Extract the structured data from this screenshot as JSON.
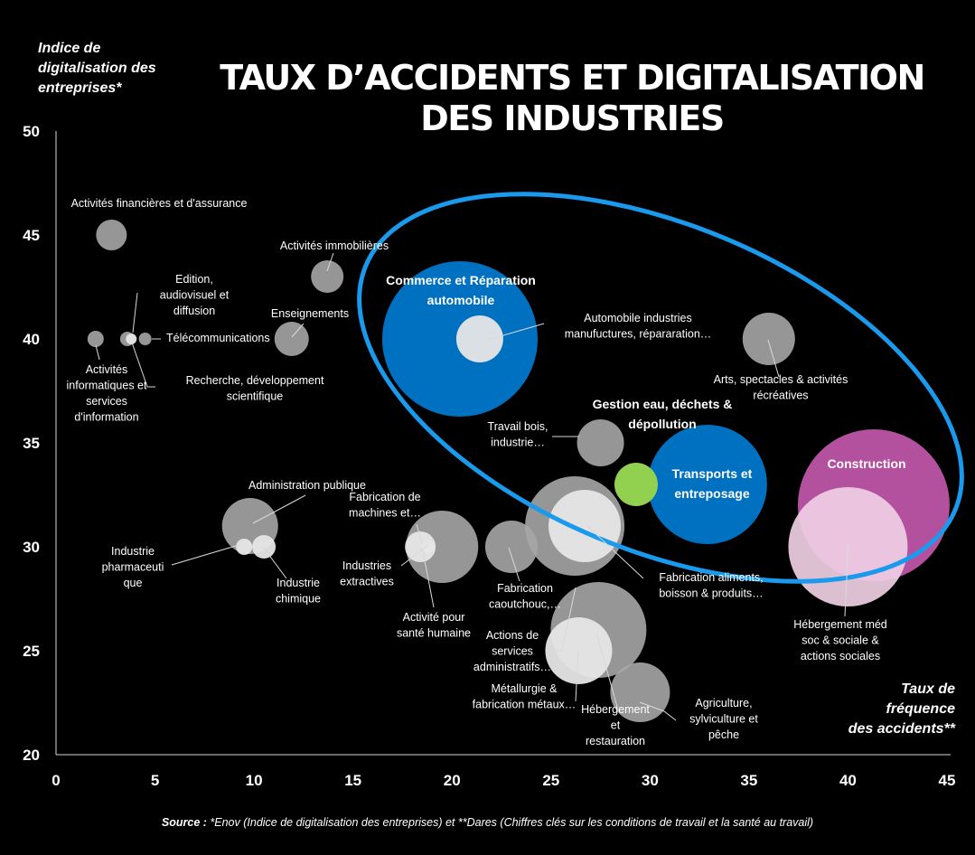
{
  "title": [
    "TAUX D’ACCIDENTS ET DIGITALISATION",
    "DES INDUSTRIES"
  ],
  "source": {
    "prefix": "Source :",
    "text": "*Enov (Indice de digitalisation des entreprises) et **Dares (Chiffres clés sur les conditions de travail et la santé au travail)"
  },
  "chart_data": {
    "type": "scatter",
    "title": "TAUX D’ACCIDENTS ET DIGITALISATION DES INDUSTRIES",
    "ylabel": [
      "Indice de",
      "digitalisation des",
      "entreprises*"
    ],
    "xlabel": [
      "Taux de",
      "fréquence",
      "des accidents**"
    ],
    "xlim": [
      0,
      45
    ],
    "ylim": [
      20,
      50
    ],
    "xticks": [
      0,
      5,
      10,
      15,
      20,
      25,
      30,
      35,
      40,
      45
    ],
    "yticks": [
      20,
      25,
      30,
      35,
      40,
      45,
      50
    ],
    "colors": {
      "grey": "#a6a6a6",
      "light": "#e6e6e6",
      "blue": "#0070c0",
      "green": "#92d050",
      "magenta": "#b3519f",
      "pink": "#f0cfe4",
      "ellipse": "#1a9aed"
    },
    "points": [
      {
        "label": [
          "Activités financières et d'assurance"
        ],
        "x": 2.8,
        "y": 45,
        "r": 17,
        "color": "grey",
        "bold": false
      },
      {
        "label": [
          "Activités immobilières"
        ],
        "x": 13.7,
        "y": 43,
        "r": 18,
        "color": "grey",
        "bold": false
      },
      {
        "label": [
          "Edition,",
          "audiovisuel et",
          "diffusion"
        ],
        "x": 3.6,
        "y": 40,
        "r": 8,
        "color": "grey",
        "bold": false
      },
      {
        "label": [
          "Télécommunications"
        ],
        "x": 4.5,
        "y": 40,
        "r": 7,
        "color": "grey",
        "bold": false
      },
      {
        "label": [
          "Activités",
          "informatiques et",
          "services",
          "d'information"
        ],
        "x": 2,
        "y": 40,
        "r": 9,
        "color": "grey",
        "bold": false
      },
      {
        "label": [
          "Recherche, développement",
          "scientifique"
        ],
        "x": 3.8,
        "y": 40,
        "r": 6,
        "color": "light",
        "bold": false
      },
      {
        "label": [
          "Enseignements"
        ],
        "x": 11.9,
        "y": 40,
        "r": 19,
        "color": "grey",
        "bold": false
      },
      {
        "label": [
          "Commerce et Réparation",
          "automobile"
        ],
        "x": 20.4,
        "y": 40,
        "r": 86,
        "color": "blue",
        "bold": true
      },
      {
        "label": [
          "Automobile industries",
          "manufuctures, répararation…"
        ],
        "x": 21.4,
        "y": 40,
        "r": 26,
        "color": "light",
        "bold": false
      },
      {
        "label": [
          "Arts, spectacles & activités",
          "récréatives"
        ],
        "x": 36,
        "y": 40,
        "r": 29,
        "color": "grey",
        "bold": false
      },
      {
        "label": [
          "Travail bois,",
          "industrie…"
        ],
        "x": 27.5,
        "y": 35,
        "r": 26,
        "color": "grey",
        "bold": false
      },
      {
        "label": [
          "Gestion eau, déchets &",
          "dépollution"
        ],
        "x": 29.3,
        "y": 33,
        "r": 24,
        "color": "green",
        "bold": true
      },
      {
        "label": [
          "Transports et",
          "entreposage"
        ],
        "x": 32.9,
        "y": 33,
        "r": 66,
        "color": "blue",
        "bold": true
      },
      {
        "label": [
          "Construction"
        ],
        "x": 41.3,
        "y": 32,
        "r": 84,
        "color": "magenta",
        "bold": true
      },
      {
        "label": [
          "Hébergement méd",
          "soc & sociale &",
          "actions sociales"
        ],
        "x": 40,
        "y": 30,
        "r": 66,
        "color": "pink",
        "bold": false
      },
      {
        "label": [
          "Administration publique"
        ],
        "x": 9.8,
        "y": 31,
        "r": 31,
        "color": "grey",
        "bold": false
      },
      {
        "label": [
          "Industrie",
          "pharmaceuti",
          "que"
        ],
        "x": 9.5,
        "y": 30,
        "r": 9,
        "color": "light",
        "bold": false
      },
      {
        "label": [
          "Industrie",
          "chimique"
        ],
        "x": 10.5,
        "y": 30,
        "r": 13,
        "color": "light",
        "bold": false
      },
      {
        "label": [
          "Fabrication de",
          "machines et…"
        ],
        "x": 18.4,
        "y": 30,
        "r": 17,
        "color": "light",
        "bold": false
      },
      {
        "label": [
          "Industries",
          "extractives"
        ],
        "x": 18.8,
        "y": 30,
        "r": 7,
        "color": "light",
        "bold": false
      },
      {
        "label": [
          "Activité pour",
          "santé humaine"
        ],
        "x": 19.5,
        "y": 30,
        "r": 40,
        "color": "grey",
        "bold": false
      },
      {
        "label": [
          "Fabrication",
          "caoutchouc,…"
        ],
        "x": 23,
        "y": 30,
        "r": 29,
        "color": "grey",
        "bold": false
      },
      {
        "label": [
          "Fabrication aliments,",
          "boisson & produits…"
        ],
        "x": 26.2,
        "y": 31,
        "r": 55,
        "color": "grey",
        "bold": false
      },
      {
        "label": [],
        "x": 26.7,
        "y": 31,
        "r": 40,
        "color": "light",
        "bold": false
      },
      {
        "label": [
          "Actions de",
          "services",
          "administratifs…"
        ],
        "x": 27.4,
        "y": 26,
        "r": 53,
        "color": "grey",
        "bold": false
      },
      {
        "label": [
          "Métallurgie &",
          "fabrication métaux…"
        ],
        "x": 26.4,
        "y": 25,
        "r": 37,
        "color": "light",
        "bold": false
      },
      {
        "label": [
          "Hébergement",
          "et",
          "restauration"
        ],
        "x": 29.5,
        "y": 23,
        "r": 33,
        "color": "grey",
        "bold": false
      },
      {
        "label": [
          "Agriculture,",
          "sylviculture et",
          "pêche"
        ],
        "x": 29.5,
        "y": 23,
        "r": 1,
        "color": "grey",
        "bold": false
      }
    ],
    "highlight": {
      "shape": "ellipse",
      "color": "ellipse"
    }
  }
}
